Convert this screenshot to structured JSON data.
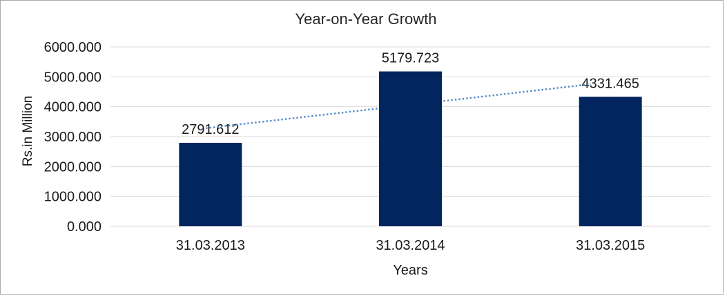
{
  "frame": {
    "background_color": "#ffffff",
    "border_color": "#aaaaaa"
  },
  "chart_data": {
    "type": "bar",
    "title": "Year-on-Year Growth",
    "xlabel": "Years",
    "ylabel": "Rs.in Million",
    "categories": [
      "31.03.2013",
      "31.03.2014",
      "31.03.2015"
    ],
    "series": [
      {
        "name": "Rs.in Million",
        "values": [
          2791.612,
          5179.723,
          4331.465
        ]
      }
    ],
    "data_labels": [
      "2791.612",
      "5179.723",
      "4331.465"
    ],
    "ylim": [
      0,
      6000
    ],
    "ytick_step": 1000,
    "ytick_labels": [
      "0.000",
      "1000.000",
      "2000.000",
      "3000.000",
      "4000.000",
      "5000.000",
      "6000.000"
    ],
    "grid": true,
    "legend": "none",
    "bar_color": "#02255f",
    "gridline_color": "#d9d9d9",
    "text_color": "#1a1a1a",
    "trendline": {
      "style": "dotted",
      "color": "#4e86c8",
      "behind_bars": true,
      "start": {
        "x_frac": 0.159,
        "value": 3280
      },
      "end": {
        "x_frac": 0.801,
        "value": 4755
      }
    }
  }
}
